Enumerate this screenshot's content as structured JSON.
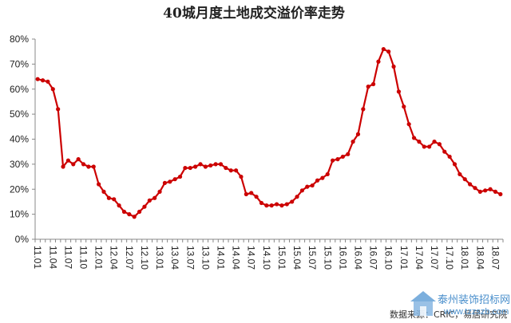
{
  "chart_data": {
    "type": "line",
    "title": "40城月度土地成交溢价率走势",
    "xlabel": "",
    "ylabel": "",
    "ylim": [
      0,
      80
    ],
    "y_ticks": [
      "0%",
      "10%",
      "20%",
      "30%",
      "40%",
      "50%",
      "60%",
      "70%",
      "80%"
    ],
    "x_tick_labels": [
      "11.01",
      "11.04",
      "11.07",
      "11.10",
      "12.01",
      "12.04",
      "12.07",
      "12.10",
      "13.01",
      "13.04",
      "13.07",
      "13.10",
      "14.01",
      "14.04",
      "14.07",
      "14.10",
      "15.01",
      "15.04",
      "15.07",
      "15.10",
      "16.01",
      "16.04",
      "16.07",
      "16.10",
      "17.01",
      "17.04",
      "17.07",
      "17.10",
      "18.01",
      "18.04",
      "18.07"
    ],
    "grid": false,
    "legend": "none",
    "series": [
      {
        "name": "",
        "color": "#cc0000",
        "values": [
          64,
          63.5,
          63,
          60,
          52,
          29,
          31.5,
          30,
          32,
          30,
          29,
          29,
          22,
          19,
          16.5,
          16,
          13.5,
          11,
          10,
          9,
          11,
          13,
          15.5,
          16.5,
          19,
          22.5,
          23,
          24,
          25,
          28.5,
          28.5,
          29,
          30,
          29,
          29.5,
          30,
          30,
          28.5,
          27.5,
          27.5,
          25,
          18,
          18.5,
          17,
          14.5,
          13.5,
          13.5,
          14,
          13.5,
          14,
          15,
          17,
          19.5,
          21,
          21.5,
          23.5,
          24.5,
          26,
          31.5,
          32,
          33,
          34,
          39,
          42,
          52,
          61,
          62,
          71,
          76,
          75,
          69,
          59,
          53,
          46,
          40.5,
          39,
          37,
          37,
          39,
          38,
          35,
          33,
          30,
          26,
          24,
          22,
          20.5,
          19,
          19.5,
          20,
          19,
          18
        ]
      }
    ]
  },
  "source_text": "数据来源：CRIC，易居研究院",
  "watermark": {
    "name": "泰州装饰招标网",
    "url": "www.tzzszb.com"
  }
}
